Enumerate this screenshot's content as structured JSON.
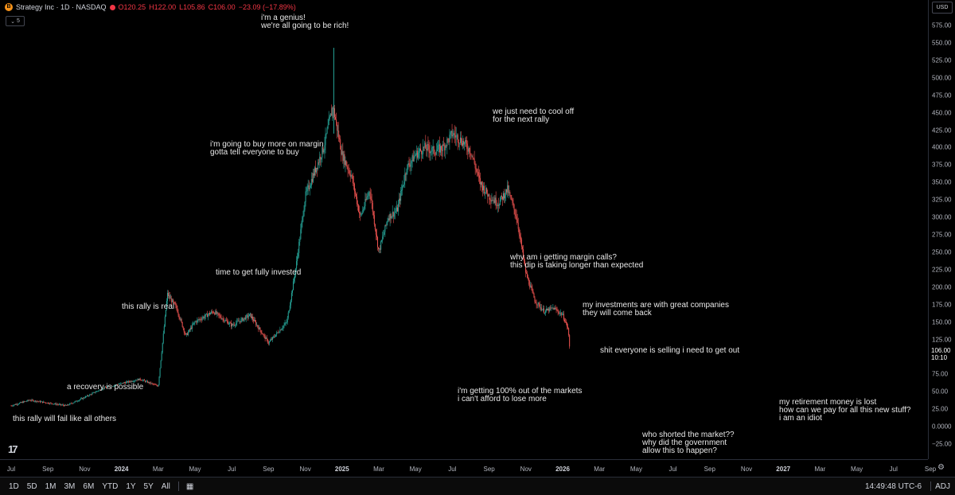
{
  "legend": {
    "logo_char": "B",
    "symbol": "Strategy Inc · 1D · NASDAQ",
    "open": "O120.25",
    "high": "H122.00",
    "low": "L105.86",
    "close": "C106.00",
    "change": "−23.09 (−17.89%)",
    "collapse_label": "5"
  },
  "currency": "USD",
  "current_price": {
    "value": "106.00",
    "countdown": "10:10"
  },
  "toolbar": {
    "ranges": [
      "1D",
      "5D",
      "1M",
      "3M",
      "6M",
      "YTD",
      "1Y",
      "5Y",
      "All"
    ],
    "time": "14:49:48 UTC-6",
    "adj": "ADJ"
  },
  "brand": "17",
  "colors": {
    "up": "#26a69a",
    "down": "#ef5350",
    "axis_text": "#b2b5be",
    "background": "#000000"
  },
  "chart_data": {
    "type": "candlestick",
    "title": "Strategy Inc · 1D · NASDAQ",
    "ylim": [
      -25,
      575
    ],
    "y_ticks": [
      575,
      550,
      525,
      500,
      475,
      450,
      425,
      400,
      375,
      350,
      325,
      300,
      275,
      250,
      225,
      200,
      175,
      150,
      125,
      106,
      75,
      50,
      25,
      0,
      -25
    ],
    "y_tick_labels": [
      "575.00",
      "550.00",
      "525.00",
      "500.00",
      "475.00",
      "450.00",
      "425.00",
      "400.00",
      "375.00",
      "350.00",
      "325.00",
      "300.00",
      "275.00",
      "250.00",
      "225.00",
      "200.00",
      "175.00",
      "150.00",
      "125.00",
      "106.00",
      "75.00",
      "50.00",
      "25.00",
      "0.0000",
      "−25.00"
    ],
    "x_ticks": [
      "Jul",
      "Sep",
      "Nov",
      "2024",
      "Mar",
      "May",
      "Jul",
      "Sep",
      "Nov",
      "2025",
      "Mar",
      "May",
      "Jul",
      "Sep",
      "Nov",
      "2026",
      "Mar",
      "May",
      "Jul",
      "Sep",
      "Nov",
      "2027",
      "Mar",
      "May",
      "Jul",
      "Sep"
    ],
    "x_tick_years": [
      "2024",
      "2025",
      "2026",
      "2027"
    ],
    "x_tick_month_index": [
      0,
      2,
      4,
      6,
      8,
      10,
      12,
      14,
      16,
      18,
      20,
      22,
      24,
      26,
      28,
      30,
      32,
      34,
      36,
      38,
      40,
      42,
      44,
      46,
      48,
      50
    ],
    "series": [
      {
        "values_by_month_index": [
          [
            0,
            30
          ],
          [
            1,
            38
          ],
          [
            2,
            34
          ],
          [
            3,
            30
          ],
          [
            4,
            42
          ],
          [
            5,
            55
          ],
          [
            6,
            62
          ],
          [
            7,
            68
          ],
          [
            8,
            58
          ],
          [
            8.5,
            190
          ],
          [
            9,
            170
          ],
          [
            9.5,
            130
          ],
          [
            10,
            150
          ],
          [
            11,
            165
          ],
          [
            12,
            145
          ],
          [
            13,
            160
          ],
          [
            14,
            120
          ],
          [
            15,
            150
          ],
          [
            15.5,
            230
          ],
          [
            16,
            330
          ],
          [
            17,
            400
          ],
          [
            17.5,
            460
          ],
          [
            18,
            390
          ],
          [
            18.5,
            360
          ],
          [
            19,
            300
          ],
          [
            19.5,
            340
          ],
          [
            20,
            250
          ],
          [
            20.5,
            300
          ],
          [
            21,
            310
          ],
          [
            21.5,
            370
          ],
          [
            22,
            390
          ],
          [
            22.5,
            400
          ],
          [
            23,
            395
          ],
          [
            23.5,
            400
          ],
          [
            24,
            420
          ],
          [
            24.5,
            410
          ],
          [
            25,
            395
          ],
          [
            25.5,
            350
          ],
          [
            26,
            330
          ],
          [
            26.5,
            320
          ],
          [
            27,
            340
          ],
          [
            27.5,
            300
          ],
          [
            28,
            220
          ],
          [
            28.5,
            180
          ],
          [
            29,
            165
          ],
          [
            29.5,
            170
          ],
          [
            30,
            160
          ],
          [
            30.3,
            140
          ],
          [
            30.4,
            106
          ]
        ],
        "last_close": 106
      }
    ],
    "annotations": [
      {
        "lines": [
          "i'm a genius!",
          "we're all going to be rich!"
        ]
      },
      {
        "lines": [
          "we just need to cool off",
          "for the next rally"
        ]
      },
      {
        "lines": [
          "i'm going to buy more on margin",
          "gotta tell everyone to buy"
        ]
      },
      {
        "lines": [
          "time to get fully invested"
        ]
      },
      {
        "lines": [
          "why am i getting margin calls?",
          "this dip is taking longer than expected"
        ]
      },
      {
        "lines": [
          "this rally is real"
        ]
      },
      {
        "lines": [
          "my investments are with great companies",
          "they will come back"
        ]
      },
      {
        "lines": [
          "shit everyone is selling i need to get out"
        ]
      },
      {
        "lines": [
          "a recovery is possible"
        ]
      },
      {
        "lines": [
          "i'm getting 100% out of the markets",
          "i can't afford to lose more"
        ]
      },
      {
        "lines": [
          "my retirement money is lost",
          "how can we pay for all this new stuff?",
          "i am an idiot"
        ]
      },
      {
        "lines": [
          "this rally will fail like all others"
        ]
      },
      {
        "lines": [
          "who shorted the market??",
          "why did the government",
          "allow this to happen?"
        ]
      }
    ]
  }
}
